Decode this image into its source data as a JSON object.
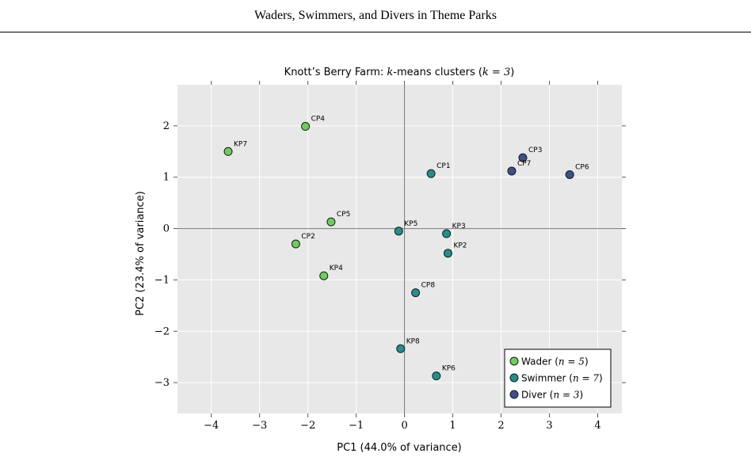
{
  "page": {
    "running_header": "Waders, Swimmers, and Divers in Theme Parks"
  },
  "chart_data": {
    "type": "scatter",
    "title_prefix": "Knott’s Berry Farm: ",
    "title_k": "k",
    "title_mid": "-means clusters (",
    "title_math": "k = 3",
    "title_suffix": ")",
    "xlabel": "PC1 (44.0% of variance)",
    "ylabel": "PC2 (23.4% of variance)",
    "xlim": [
      -4.7,
      4.5
    ],
    "ylim": [
      -3.6,
      2.8
    ],
    "xticks": [
      -4,
      -3,
      -2,
      -1,
      0,
      1,
      2,
      3,
      4
    ],
    "yticks": [
      -3,
      -2,
      -1,
      0,
      1,
      2
    ],
    "tick_labels_x": [
      "−4",
      "−3",
      "−2",
      "−1",
      "0",
      "1",
      "2",
      "3",
      "4"
    ],
    "tick_labels_y": [
      "−3",
      "−2",
      "−1",
      "0",
      "1",
      "2"
    ],
    "grid": true,
    "background": "#e8e8e8",
    "legend_position": "bottom-right",
    "series": [
      {
        "name": "Wader",
        "n_label": "n = 5",
        "color": "#6cce5a",
        "points": [
          {
            "label": "KP7",
            "x": -3.65,
            "y": 1.5
          },
          {
            "label": "CP4",
            "x": -2.05,
            "y": 1.99
          },
          {
            "label": "CP5",
            "x": -1.52,
            "y": 0.13
          },
          {
            "label": "CP2",
            "x": -2.25,
            "y": -0.3
          },
          {
            "label": "KP4",
            "x": -1.67,
            "y": -0.92
          }
        ]
      },
      {
        "name": "Swimmer",
        "n_label": "n = 7",
        "color": "#21908d",
        "points": [
          {
            "label": "CP1",
            "x": 0.55,
            "y": 1.07
          },
          {
            "label": "KP5",
            "x": -0.12,
            "y": -0.05
          },
          {
            "label": "KP3",
            "x": 0.87,
            "y": -0.1
          },
          {
            "label": "KP2",
            "x": 0.9,
            "y": -0.48
          },
          {
            "label": "CP8",
            "x": 0.23,
            "y": -1.25
          },
          {
            "label": "KP8",
            "x": -0.08,
            "y": -2.34
          },
          {
            "label": "KP6",
            "x": 0.66,
            "y": -2.87
          }
        ]
      },
      {
        "name": "Diver",
        "n_label": "n = 3",
        "color": "#3b528b",
        "points": [
          {
            "label": "CP3",
            "x": 2.45,
            "y": 1.38
          },
          {
            "label": "CP7",
            "x": 2.22,
            "y": 1.12
          },
          {
            "label": "CP6",
            "x": 3.42,
            "y": 1.05
          }
        ]
      }
    ]
  }
}
